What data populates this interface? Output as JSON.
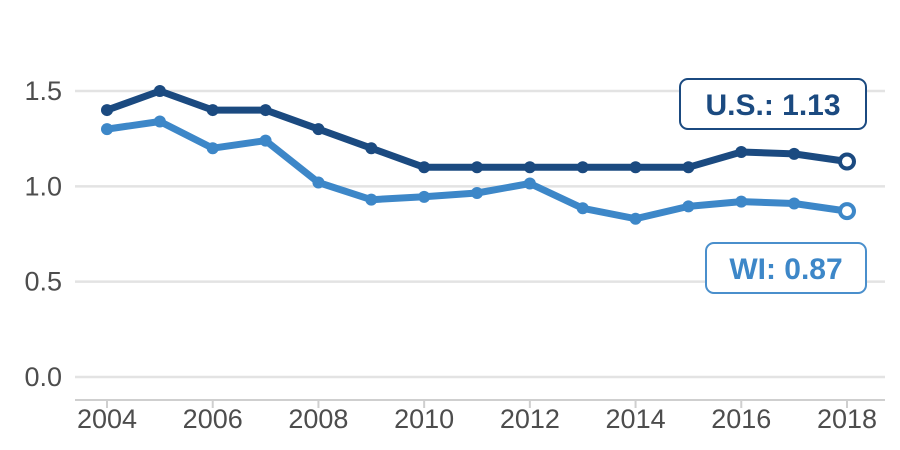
{
  "chart_data": {
    "type": "line",
    "title": "",
    "xlabel": "",
    "ylabel": "",
    "x": [
      2004,
      2005,
      2006,
      2007,
      2008,
      2009,
      2010,
      2011,
      2012,
      2013,
      2014,
      2015,
      2016,
      2017,
      2018
    ],
    "xlim": [
      2004,
      2018
    ],
    "ylim": [
      0,
      1.5
    ],
    "x_ticks": [
      2004,
      2006,
      2008,
      2010,
      2012,
      2014,
      2016,
      2018
    ],
    "x_tick_labels": [
      "2004",
      "2006",
      "2008",
      "2010",
      "2012",
      "2014",
      "2016",
      "2018"
    ],
    "y_ticks": [
      0,
      0.5,
      1,
      1.5
    ],
    "y_tick_labels": [
      "0.0",
      "0.5",
      "1.0",
      "1.5"
    ],
    "grid": "horizontal",
    "legend": "none",
    "series": [
      {
        "name": "U.S.",
        "color": "#1b4a80",
        "values": [
          1.4,
          1.5,
          1.4,
          1.4,
          1.3,
          1.2,
          1.1,
          1.1,
          1.1,
          1.1,
          1.1,
          1.1,
          1.18,
          1.17,
          1.13
        ],
        "end_label": "U.S.: 1.13"
      },
      {
        "name": "WI",
        "color": "#3d87c8",
        "values": [
          1.3,
          1.34,
          1.2,
          1.24,
          1.02,
          0.93,
          0.945,
          0.965,
          1.015,
          0.885,
          0.83,
          0.895,
          0.92,
          0.91,
          0.87
        ],
        "end_label": "WI: 0.87"
      }
    ]
  }
}
